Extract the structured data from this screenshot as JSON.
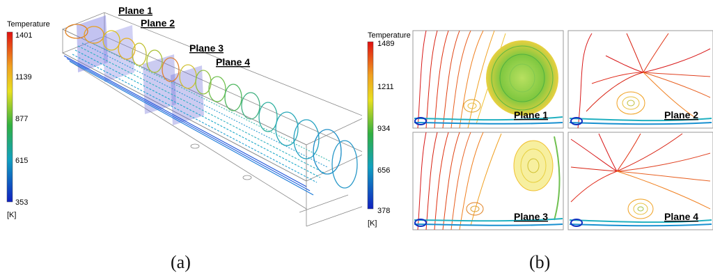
{
  "figure_a": {
    "caption": "(a)",
    "colorbar": {
      "title": "Temperature",
      "unit": "[K]",
      "ticks": [
        "1401",
        "1139",
        "877",
        "615",
        "353"
      ]
    },
    "plane_labels": [
      "Plane 1",
      "Plane 2",
      "Plane 3",
      "Plane 4"
    ]
  },
  "figure_b": {
    "caption": "(b)",
    "colorbar": {
      "title": "Temperature",
      "unit": "[K]",
      "ticks": [
        "1489",
        "1211",
        "934",
        "656",
        "378"
      ]
    },
    "panels": [
      {
        "label": "Plane 1"
      },
      {
        "label": "Plane 2"
      },
      {
        "label": "Plane 3"
      },
      {
        "label": "Plane 4"
      }
    ]
  }
}
